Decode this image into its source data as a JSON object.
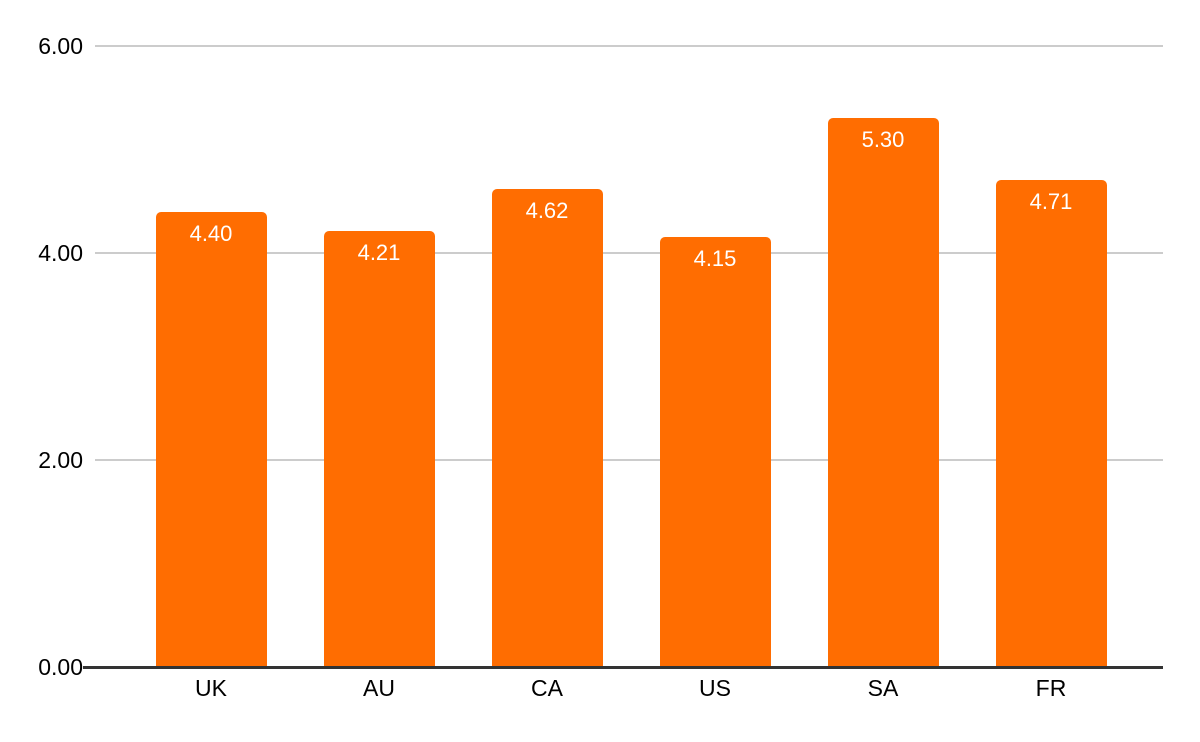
{
  "chart_data": {
    "type": "bar",
    "categories": [
      "UK",
      "AU",
      "CA",
      "US",
      "SA",
      "FR"
    ],
    "values": [
      4.4,
      4.21,
      4.62,
      4.15,
      5.3,
      4.71
    ],
    "value_labels": [
      "4.40",
      "4.21",
      "4.62",
      "4.15",
      "5.30",
      "4.71"
    ],
    "title": "",
    "xlabel": "",
    "ylabel": "",
    "ylim": [
      0,
      6
    ],
    "yticks": [
      0,
      2,
      4,
      6
    ],
    "ytick_labels": [
      "0.00",
      "2.00",
      "4.00",
      "6.00"
    ],
    "grid": true,
    "legend_position": "none",
    "colors": {
      "bar": "#ff6d01",
      "bar_value_label": "#ffffff",
      "gridline": "#cccccc",
      "axis_line": "#333333",
      "axis_text": "#000000",
      "background": "#ffffff"
    }
  }
}
